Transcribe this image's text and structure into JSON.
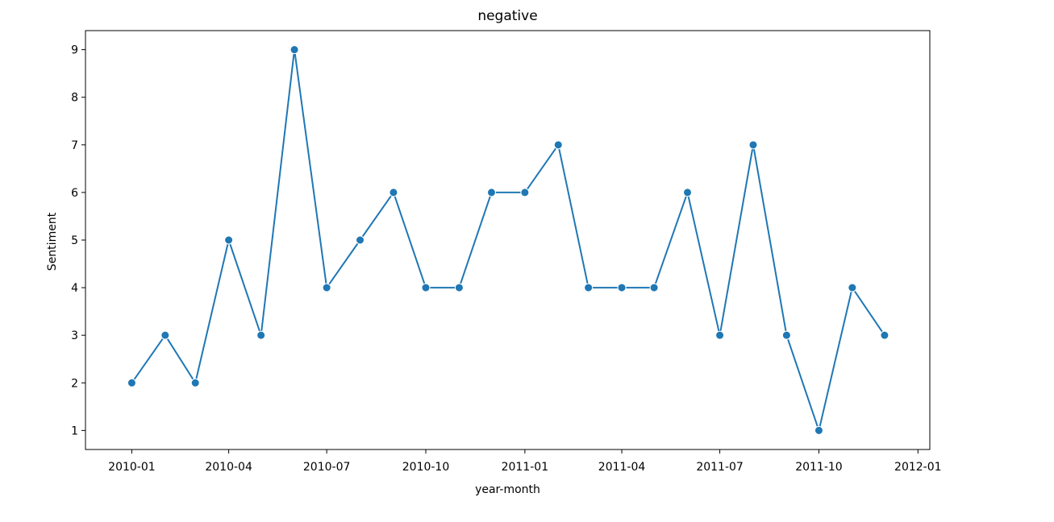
{
  "chart_data": {
    "type": "line",
    "title": "negative",
    "xlabel": "year-month",
    "ylabel": "Sentiment",
    "x": [
      "2010-01",
      "2010-02",
      "2010-03",
      "2010-04",
      "2010-05",
      "2010-06",
      "2010-07",
      "2010-08",
      "2010-09",
      "2010-10",
      "2010-11",
      "2010-12",
      "2011-01",
      "2011-02",
      "2011-03",
      "2011-04",
      "2011-05",
      "2011-06",
      "2011-07",
      "2011-08",
      "2011-09",
      "2011-10",
      "2011-11",
      "2011-12"
    ],
    "series": [
      {
        "values": [
          2,
          3,
          2,
          5,
          3,
          9,
          4,
          5,
          6,
          4,
          4,
          6,
          6,
          7,
          4,
          4,
          4,
          6,
          3,
          7,
          3,
          1,
          4,
          3
        ],
        "color": "#1f77b4",
        "marker": "circle"
      }
    ],
    "xticks": [
      "2010-01",
      "2010-04",
      "2010-07",
      "2010-10",
      "2011-01",
      "2011-04",
      "2011-07",
      "2011-10",
      "2012-01"
    ],
    "yticks": [
      1,
      2,
      3,
      4,
      5,
      6,
      7,
      8,
      9
    ],
    "xlim": [
      "2009-11-19",
      "2012-01-12"
    ],
    "ylim": [
      0.6,
      9.4
    ],
    "grid": false,
    "legend": false
  }
}
